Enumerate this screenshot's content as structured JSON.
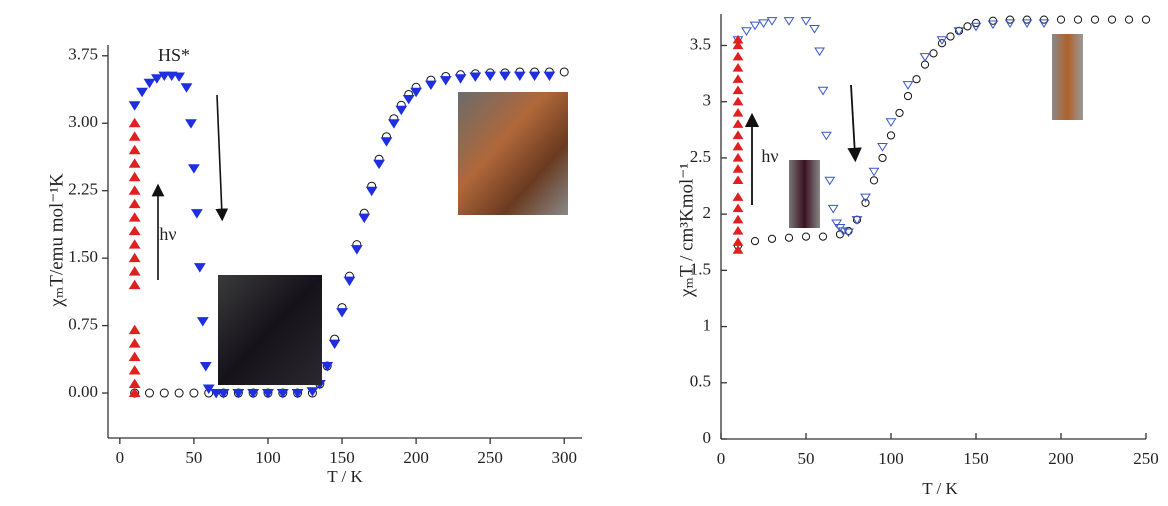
{
  "chart_data": [
    {
      "type": "scatter",
      "xlabel": "T / K",
      "ylabel": "χₘT/emu mol⁻¹K",
      "annotations": [
        "HS*",
        "hν"
      ],
      "xlim": [
        -8,
        312
      ],
      "xticks": [
        0,
        50,
        100,
        150,
        200,
        250,
        300
      ],
      "ylim": [
        -0.5,
        3.87
      ],
      "yticks": [
        {
          "value": 0,
          "label": "0.00"
        },
        {
          "value": 0.75,
          "label": "0.75"
        },
        {
          "value": 1.5,
          "label": "1.50"
        },
        {
          "value": 2.25,
          "label": "2.25"
        },
        {
          "value": 3,
          "label": "3.00"
        },
        {
          "value": 3.75,
          "label": "3.75"
        }
      ],
      "series": [
        {
          "color": "#111111",
          "marker": "circle",
          "fill": false,
          "x": [
            10,
            20,
            30,
            40,
            50,
            60,
            70,
            80,
            90,
            100,
            110,
            120,
            130,
            135,
            140,
            145,
            150,
            155,
            160,
            165,
            170,
            175,
            180,
            185,
            190,
            195,
            200,
            210,
            220,
            230,
            240,
            250,
            260,
            270,
            280,
            290,
            300
          ],
          "values": [
            0,
            0,
            0,
            0,
            0,
            0,
            0,
            0,
            0,
            0,
            0,
            0,
            0,
            0.1,
            0.3,
            0.6,
            0.95,
            1.3,
            1.65,
            2.0,
            2.3,
            2.6,
            2.85,
            3.05,
            3.2,
            3.32,
            3.4,
            3.48,
            3.52,
            3.54,
            3.55,
            3.56,
            3.56,
            3.57,
            3.57,
            3.57,
            3.57
          ]
        },
        {
          "color": "#1f2fe0",
          "marker": "triangle-down",
          "fill": true,
          "x": [
            10,
            15,
            20,
            25,
            30,
            35,
            40,
            45,
            48,
            50,
            52,
            54,
            56,
            58,
            60,
            65,
            70,
            80,
            90,
            100,
            110,
            120,
            130,
            135,
            140,
            145,
            150,
            155,
            160,
            165,
            170,
            175,
            180,
            185,
            190,
            195,
            200,
            210,
            220,
            230,
            240,
            250,
            260,
            270,
            280,
            290
          ],
          "values": [
            3.2,
            3.35,
            3.45,
            3.5,
            3.53,
            3.53,
            3.52,
            3.4,
            3.0,
            2.5,
            2.0,
            1.4,
            0.8,
            0.3,
            0.05,
            0,
            0,
            0,
            0,
            0,
            0,
            0,
            0.02,
            0.1,
            0.3,
            0.55,
            0.9,
            1.25,
            1.6,
            1.95,
            2.25,
            2.55,
            2.8,
            3.0,
            3.15,
            3.27,
            3.35,
            3.43,
            3.48,
            3.5,
            3.52,
            3.53,
            3.53,
            3.53,
            3.53,
            3.53
          ]
        },
        {
          "color": "#e02020",
          "marker": "triangle-up",
          "fill": true,
          "x": [
            10,
            10,
            10,
            10,
            10,
            10,
            10,
            10,
            10,
            10,
            10,
            10,
            10,
            10,
            10,
            10,
            10,
            10,
            10
          ],
          "values": [
            0,
            0.1,
            0.25,
            0.4,
            0.55,
            0.7,
            1.2,
            1.35,
            1.5,
            1.65,
            1.8,
            1.95,
            2.1,
            2.25,
            2.4,
            2.55,
            2.7,
            2.85,
            3.0
          ]
        }
      ]
    },
    {
      "type": "scatter",
      "xlabel": "T / K",
      "ylabel": "χₘT / cm³Kmol⁻¹",
      "annotations": [
        "hν"
      ],
      "xlim": [
        0,
        250
      ],
      "xticks": [
        0,
        50,
        100,
        150,
        200,
        250
      ],
      "ylim": [
        0,
        3.78
      ],
      "yticks": [
        0,
        0.5,
        1,
        1.5,
        2,
        2.5,
        3,
        3.5
      ],
      "series": [
        {
          "color": "#111111",
          "marker": "circle",
          "fill": false,
          "x": [
            10,
            20,
            30,
            40,
            50,
            60,
            70,
            75,
            80,
            85,
            90,
            95,
            100,
            105,
            110,
            115,
            120,
            125,
            130,
            135,
            140,
            145,
            150,
            160,
            170,
            180,
            190,
            200,
            210,
            220,
            230,
            240,
            250
          ],
          "values": [
            1.72,
            1.76,
            1.78,
            1.79,
            1.8,
            1.8,
            1.82,
            1.85,
            1.95,
            2.1,
            2.3,
            2.5,
            2.7,
            2.9,
            3.05,
            3.2,
            3.33,
            3.43,
            3.52,
            3.58,
            3.63,
            3.67,
            3.7,
            3.72,
            3.73,
            3.73,
            3.73,
            3.73,
            3.73,
            3.73,
            3.73,
            3.73,
            3.73
          ]
        },
        {
          "color": "#3a55c8",
          "marker": "triangle-down",
          "fill": false,
          "x": [
            10,
            15,
            20,
            25,
            30,
            40,
            50,
            55,
            58,
            60,
            62,
            64,
            66,
            68,
            70,
            72,
            75,
            80,
            85,
            90,
            95,
            100,
            110,
            120,
            130,
            140,
            150,
            160,
            170,
            180,
            190
          ],
          "values": [
            3.55,
            3.63,
            3.68,
            3.7,
            3.72,
            3.72,
            3.72,
            3.65,
            3.45,
            3.1,
            2.7,
            2.3,
            2.05,
            1.92,
            1.88,
            1.85,
            1.84,
            1.95,
            2.15,
            2.38,
            2.6,
            2.82,
            3.15,
            3.4,
            3.55,
            3.63,
            3.67,
            3.69,
            3.7,
            3.7,
            3.7
          ]
        },
        {
          "color": "#e02020",
          "marker": "triangle-up",
          "fill": true,
          "x": [
            10,
            10,
            10,
            10,
            10,
            10,
            10,
            10,
            10,
            10,
            10,
            10,
            10,
            10,
            10,
            10,
            10,
            10,
            10,
            10
          ],
          "values": [
            1.68,
            1.75,
            1.85,
            1.95,
            2.05,
            2.15,
            2.3,
            2.4,
            2.5,
            2.6,
            2.7,
            2.8,
            2.9,
            3.0,
            3.1,
            3.2,
            3.3,
            3.4,
            3.5,
            3.55
          ]
        }
      ]
    }
  ]
}
